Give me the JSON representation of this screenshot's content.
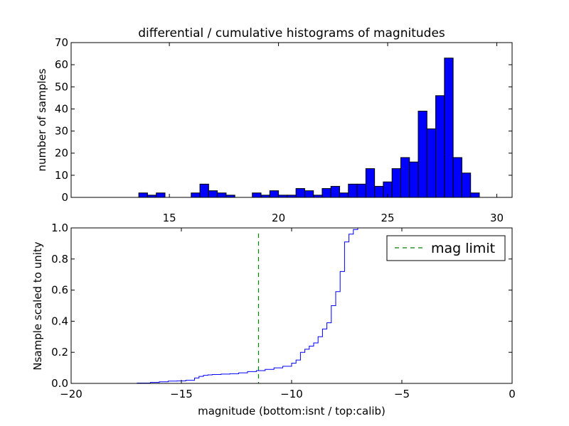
{
  "chart_data": [
    {
      "type": "bar",
      "title": "differential / cumulative histograms of magnitudes",
      "ylabel": "number of samples",
      "xlabel": "",
      "xlim": [
        10.5,
        30.7
      ],
      "ylim": [
        0,
        70
      ],
      "x_ticks": [
        15,
        20,
        25,
        30
      ],
      "y_ticks": [
        0,
        10,
        20,
        30,
        40,
        50,
        60,
        70
      ],
      "bin_width": 0.4,
      "bins": [
        {
          "start": 13.6,
          "count": 2
        },
        {
          "start": 14.0,
          "count": 1
        },
        {
          "start": 14.4,
          "count": 2
        },
        {
          "start": 16.0,
          "count": 2
        },
        {
          "start": 16.4,
          "count": 6
        },
        {
          "start": 16.8,
          "count": 3
        },
        {
          "start": 17.2,
          "count": 2
        },
        {
          "start": 17.6,
          "count": 1
        },
        {
          "start": 18.8,
          "count": 2
        },
        {
          "start": 19.2,
          "count": 1
        },
        {
          "start": 19.6,
          "count": 3
        },
        {
          "start": 20.0,
          "count": 1
        },
        {
          "start": 20.4,
          "count": 1
        },
        {
          "start": 20.8,
          "count": 4
        },
        {
          "start": 21.2,
          "count": 3
        },
        {
          "start": 21.6,
          "count": 1
        },
        {
          "start": 22.0,
          "count": 4
        },
        {
          "start": 22.4,
          "count": 5
        },
        {
          "start": 22.8,
          "count": 2
        },
        {
          "start": 23.2,
          "count": 6
        },
        {
          "start": 23.6,
          "count": 6
        },
        {
          "start": 24.0,
          "count": 13
        },
        {
          "start": 24.4,
          "count": 5
        },
        {
          "start": 24.8,
          "count": 7
        },
        {
          "start": 25.2,
          "count": 13
        },
        {
          "start": 25.6,
          "count": 18
        },
        {
          "start": 26.0,
          "count": 16
        },
        {
          "start": 26.4,
          "count": 39
        },
        {
          "start": 26.8,
          "count": 31
        },
        {
          "start": 27.2,
          "count": 46
        },
        {
          "start": 27.6,
          "count": 63
        },
        {
          "start": 28.0,
          "count": 18
        },
        {
          "start": 28.4,
          "count": 11
        },
        {
          "start": 28.8,
          "count": 2
        }
      ],
      "bar_color": "#0000ff",
      "grid": false
    },
    {
      "type": "line",
      "xlabel": "magnitude (bottom:isnt / top:calib)",
      "ylabel": "Nsample scaled to unity",
      "xlim": [
        -20,
        0
      ],
      "ylim": [
        0,
        1
      ],
      "x_ticks": [
        -20,
        -15,
        -10,
        -5,
        0
      ],
      "x_tick_labels": [
        "−20",
        "−15",
        "−10",
        "−5",
        "0"
      ],
      "y_ticks": [
        0,
        0.2,
        0.4,
        0.6,
        0.8,
        1.0
      ],
      "y_tick_labels": [
        "0.0",
        "0.2",
        "0.4",
        "0.6",
        "0.8",
        "1.0"
      ],
      "series": [
        {
          "style": "step",
          "color": "#0000ff",
          "points": [
            [
              -20.0,
              0.0
            ],
            [
              -17.0,
              0.002
            ],
            [
              -16.4,
              0.006
            ],
            [
              -16.0,
              0.01
            ],
            [
              -15.6,
              0.015
            ],
            [
              -15.2,
              0.016
            ],
            [
              -14.8,
              0.02
            ],
            [
              -14.4,
              0.035
            ],
            [
              -14.2,
              0.045
            ],
            [
              -14.0,
              0.052
            ],
            [
              -13.8,
              0.055
            ],
            [
              -13.6,
              0.057
            ],
            [
              -13.2,
              0.06
            ],
            [
              -12.8,
              0.062
            ],
            [
              -12.4,
              0.068
            ],
            [
              -12.0,
              0.076
            ],
            [
              -11.6,
              0.082
            ],
            [
              -11.2,
              0.09
            ],
            [
              -10.8,
              0.1
            ],
            [
              -10.4,
              0.11
            ],
            [
              -10.0,
              0.13
            ],
            [
              -9.8,
              0.15
            ],
            [
              -9.6,
              0.2
            ],
            [
              -9.4,
              0.22
            ],
            [
              -9.2,
              0.24
            ],
            [
              -9.0,
              0.26
            ],
            [
              -8.8,
              0.3
            ],
            [
              -8.6,
              0.35
            ],
            [
              -8.4,
              0.39
            ],
            [
              -8.2,
              0.5
            ],
            [
              -8.0,
              0.59
            ],
            [
              -7.8,
              0.72
            ],
            [
              -7.6,
              0.91
            ],
            [
              -7.4,
              0.96
            ],
            [
              -7.2,
              0.99
            ],
            [
              -7.0,
              1.0
            ],
            [
              -0.05,
              1.0
            ]
          ]
        },
        {
          "name": "mag limit",
          "style": "vline-dashed",
          "color": "#008000",
          "x": -11.5
        }
      ],
      "legend_placement": "top-right",
      "grid": false
    }
  ]
}
